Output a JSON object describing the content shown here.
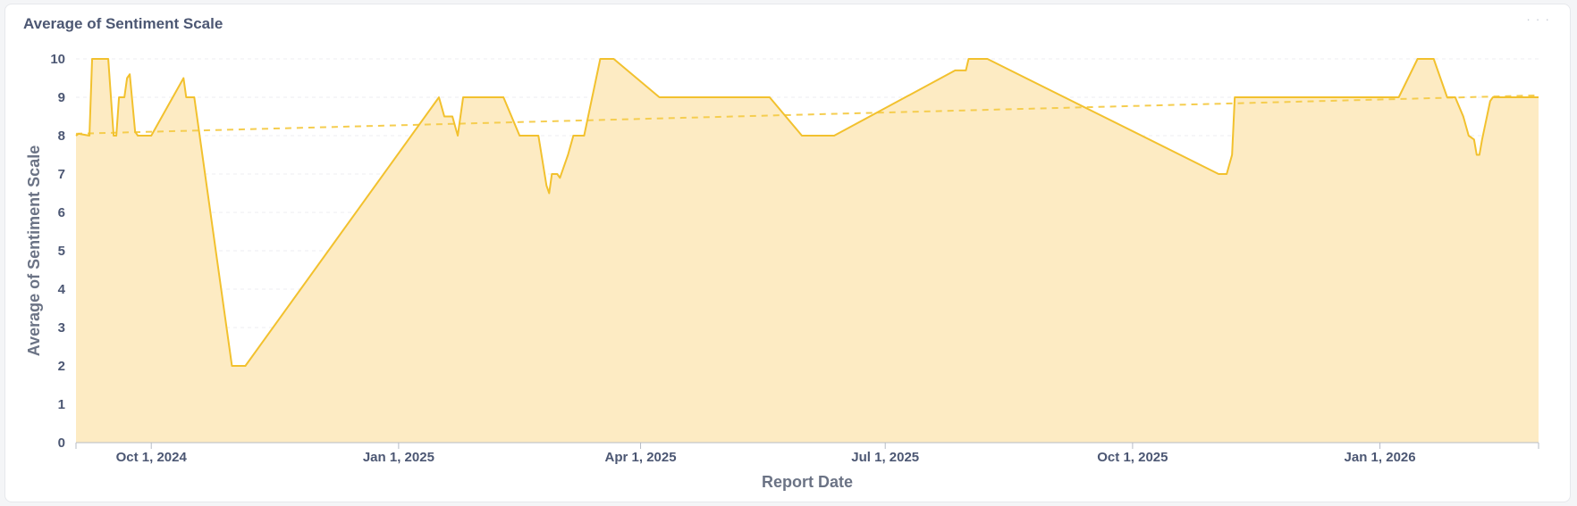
{
  "card": {
    "title": "Average of Sentiment Scale",
    "menu_icon": "ellipsis-icon",
    "menu_glyph": "· · ·"
  },
  "chart_data": {
    "type": "area",
    "title": "Average of Sentiment Scale",
    "xlabel": "Report Date",
    "ylabel": "Average of Sentiment Scale",
    "ylim": [
      0,
      10
    ],
    "yticks": [
      0,
      1,
      2,
      3,
      4,
      5,
      6,
      7,
      8,
      9,
      10
    ],
    "xlim": [
      "2024-09-03",
      "2026-03-01"
    ],
    "xticks": [
      {
        "date": "2024-10-01",
        "label": "Oct 1, 2024"
      },
      {
        "date": "2025-01-01",
        "label": "Jan 1, 2025"
      },
      {
        "date": "2025-04-01",
        "label": "Apr 1, 2025"
      },
      {
        "date": "2025-07-01",
        "label": "Jul 1, 2025"
      },
      {
        "date": "2025-10-01",
        "label": "Oct 1, 2025"
      },
      {
        "date": "2026-01-01",
        "label": "Jan 1, 2026"
      }
    ],
    "grid": true,
    "colors": {
      "line": "#f2c12e",
      "fill": "#fdebc3",
      "trend": "#f5cd4f",
      "grid": "#eceef2",
      "axis": "#b7bcc6"
    },
    "series": [
      {
        "values": [
          [
            "2024-09-03",
            8.0
          ],
          [
            "2024-09-04",
            8.05
          ],
          [
            "2024-09-08",
            8.0
          ],
          [
            "2024-09-09",
            10.0
          ],
          [
            "2024-09-15",
            10.0
          ],
          [
            "2024-09-17",
            8.0
          ],
          [
            "2024-09-18",
            8.0
          ],
          [
            "2024-09-19",
            9.0
          ],
          [
            "2024-09-21",
            9.0
          ],
          [
            "2024-09-22",
            9.5
          ],
          [
            "2024-09-23",
            9.6
          ],
          [
            "2024-09-25",
            8.1
          ],
          [
            "2024-09-26",
            8.0
          ],
          [
            "2024-10-01",
            8.0
          ],
          [
            "2024-10-13",
            9.5
          ],
          [
            "2024-10-14",
            9.0
          ],
          [
            "2024-10-17",
            9.0
          ],
          [
            "2024-10-31",
            2.0
          ],
          [
            "2024-11-05",
            2.0
          ],
          [
            "2025-01-16",
            9.0
          ],
          [
            "2025-01-18",
            8.5
          ],
          [
            "2025-01-21",
            8.5
          ],
          [
            "2025-01-23",
            8.0
          ],
          [
            "2025-01-25",
            9.0
          ],
          [
            "2025-02-09",
            9.0
          ],
          [
            "2025-02-15",
            8.0
          ],
          [
            "2025-02-22",
            8.0
          ],
          [
            "2025-02-25",
            6.7
          ],
          [
            "2025-02-26",
            6.5
          ],
          [
            "2025-02-27",
            7.0
          ],
          [
            "2025-03-01",
            7.0
          ],
          [
            "2025-03-02",
            6.9
          ],
          [
            "2025-03-05",
            7.5
          ],
          [
            "2025-03-07",
            8.0
          ],
          [
            "2025-03-11",
            8.0
          ],
          [
            "2025-03-17",
            10.0
          ],
          [
            "2025-03-22",
            10.0
          ],
          [
            "2025-04-08",
            9.0
          ],
          [
            "2025-05-19",
            9.0
          ],
          [
            "2025-05-31",
            8.0
          ],
          [
            "2025-06-12",
            8.0
          ],
          [
            "2025-07-27",
            9.7
          ],
          [
            "2025-07-31",
            9.7
          ],
          [
            "2025-08-01",
            10.0
          ],
          [
            "2025-08-08",
            10.0
          ],
          [
            "2025-11-02",
            7.0
          ],
          [
            "2025-11-05",
            7.0
          ],
          [
            "2025-11-07",
            7.5
          ],
          [
            "2025-11-08",
            9.0
          ],
          [
            "2026-01-08",
            9.0
          ],
          [
            "2026-01-15",
            10.0
          ],
          [
            "2026-01-21",
            10.0
          ],
          [
            "2026-01-26",
            9.0
          ],
          [
            "2026-01-29",
            9.0
          ],
          [
            "2026-02-01",
            8.5
          ],
          [
            "2026-02-03",
            8.0
          ],
          [
            "2026-02-05",
            7.9
          ],
          [
            "2026-02-06",
            7.5
          ],
          [
            "2026-02-07",
            7.5
          ],
          [
            "2026-02-08",
            7.9
          ],
          [
            "2026-02-11",
            8.9
          ],
          [
            "2026-02-12",
            9.0
          ],
          [
            "2026-03-01",
            9.0
          ]
        ]
      }
    ],
    "trend": {
      "style": "dashed",
      "from": [
        "2024-09-03",
        8.05
      ],
      "to": [
        "2026-03-01",
        9.05
      ]
    }
  }
}
